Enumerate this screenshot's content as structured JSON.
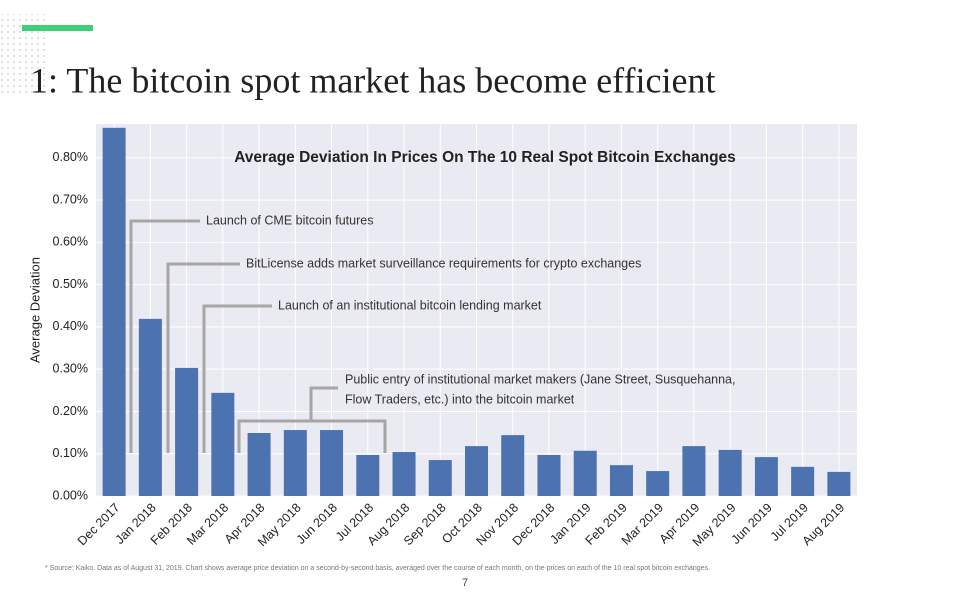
{
  "slide": {
    "title": "1: The bitcoin spot market has become efficient",
    "footnote": "* Source: Kaiko. Data as of August 31, 2019.  Chart shows average price deviation on a second-by-second basis, averaged over the course of each month, on the prices on each of the 10 real spot bitcoin exchanges.",
    "page_number": "7"
  },
  "chart_data": {
    "type": "bar",
    "title": "Average Deviation In Prices On The 10 Real Spot Bitcoin Exchanges",
    "y_label": "Average Deviation",
    "categories": [
      "Dec 2017",
      "Jan 2018",
      "Feb 2018",
      "Mar 2018",
      "Apr 2018",
      "May 2018",
      "Jun 2018",
      "Jul 2018",
      "Aug 2018",
      "Sep 2018",
      "Oct 2018",
      "Nov 2018",
      "Dec 2018",
      "Jan 2019",
      "Feb 2019",
      "Mar 2019",
      "Apr 2019",
      "May 2019",
      "Jun 2019",
      "Jul 2019",
      "Aug 2019"
    ],
    "values": [
      0.871,
      0.419,
      0.303,
      0.244,
      0.149,
      0.156,
      0.156,
      0.097,
      0.104,
      0.085,
      0.118,
      0.144,
      0.097,
      0.107,
      0.073,
      0.059,
      0.118,
      0.109,
      0.092,
      0.069,
      0.057
    ],
    "color": "#4c72b0",
    "ylim": [
      0,
      0.88
    ],
    "yticks": [
      {
        "value": 0,
        "label": "0.00%"
      },
      {
        "value": 0.1,
        "label": "0.10%"
      },
      {
        "value": 0.2,
        "label": "0.20%"
      },
      {
        "value": 0.3,
        "label": "0.30%"
      },
      {
        "value": 0.4,
        "label": "0.40%"
      },
      {
        "value": 0.5,
        "label": "0.50%"
      },
      {
        "value": 0.6,
        "label": "0.60%"
      },
      {
        "value": 0.7,
        "label": "0.70%"
      },
      {
        "value": 0.8,
        "label": "0.80%"
      }
    ],
    "grid": true,
    "annotations": [
      "Launch of CME bitcoin futures",
      "BitLicense adds market surveillance requirements for crypto exchanges",
      "Launch of an institutional bitcoin lending market",
      "Public entry of institutional market makers (Jane Street, Susquehanna,",
      "Flow Traders, etc.) into the bitcoin market"
    ]
  }
}
